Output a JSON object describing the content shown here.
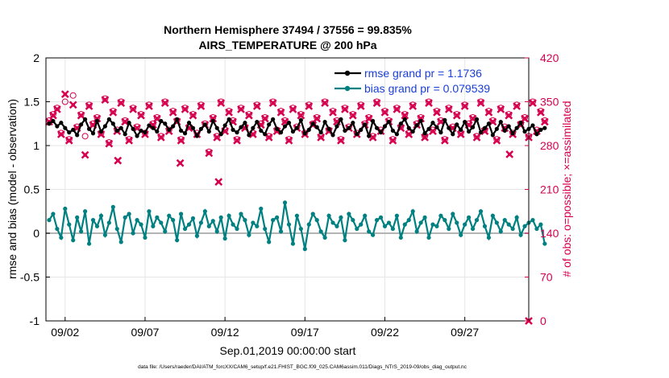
{
  "chart_data": {
    "type": "line",
    "title_line1": "Northern Hemisphere 37494 / 37556 = 99.835%",
    "title_line2": "AIRS_TEMPERATURE @ 200 hPa",
    "xlabel": "Sep.01,2019 00:00:00 start",
    "ylabel_left": "rmse and bias (model - observation)",
    "ylabel_right": "# of obs: o=possible; ×=assimilated",
    "footnote": "data file: /Users/raeder/DAI/ATM_forcXX/CAM6_setup/f.e21.FHIST_BGC.f09_025.CAM6assim.011/Diags_NTrS_2019-09/obs_diag_output.nc",
    "x_ticks": [
      {
        "day": 2,
        "label": "09/02"
      },
      {
        "day": 7,
        "label": "09/07"
      },
      {
        "day": 12,
        "label": "09/12"
      },
      {
        "day": 17,
        "label": "09/17"
      },
      {
        "day": 22,
        "label": "09/22"
      },
      {
        "day": 27,
        "label": "09/27"
      }
    ],
    "xlim": [
      0.8,
      31.0
    ],
    "ylim_left": [
      -1,
      2
    ],
    "yticks_left": [
      "-1",
      "-0.5",
      "0",
      "0.5",
      "1",
      "1.5",
      "2"
    ],
    "ylim_right": [
      0,
      420
    ],
    "yticks_right": [
      "0",
      "70",
      "140",
      "210",
      "280",
      "350",
      "420"
    ],
    "legend": [
      {
        "label": "rmse grand pr = 1.1736",
        "color": "#000000"
      },
      {
        "label": "bias grand pr = 0.079539",
        "color": "#008080"
      }
    ],
    "colors": {
      "rmse": "#000000",
      "bias": "#008080",
      "obs": "#d6004f",
      "zero_line": "#b4b4b4",
      "grid": "#e6e6e6"
    },
    "x_start": 1.0,
    "x_step": 0.25,
    "series": [
      {
        "name": "rmse",
        "axis": "left",
        "values": [
          1.25,
          1.28,
          1.22,
          1.26,
          1.2,
          1.15,
          1.18,
          1.12,
          1.24,
          1.3,
          1.19,
          1.14,
          1.28,
          1.16,
          1.22,
          1.3,
          1.25,
          1.17,
          1.2,
          1.13,
          1.26,
          1.19,
          1.11,
          1.17,
          1.15,
          1.23,
          1.2,
          1.16,
          1.28,
          1.25,
          1.18,
          1.22,
          1.3,
          1.17,
          1.14,
          1.26,
          1.2,
          1.11,
          1.19,
          1.24,
          1.16,
          1.28,
          1.2,
          1.13,
          1.23,
          1.3,
          1.18,
          1.15,
          1.21,
          1.26,
          1.12,
          1.2,
          1.27,
          1.17,
          1.13,
          1.24,
          1.3,
          1.19,
          1.15,
          1.22,
          1.26,
          1.16,
          1.2,
          1.29,
          1.14,
          1.18,
          1.25,
          1.21,
          1.15,
          1.27,
          1.19,
          1.12,
          1.22,
          1.3,
          1.17,
          1.2,
          1.26,
          1.13,
          1.18,
          1.24,
          1.11,
          1.28,
          1.2,
          1.15,
          1.22,
          1.27,
          1.17,
          1.13,
          1.25,
          1.3,
          1.2,
          1.16,
          1.23,
          1.28,
          1.14,
          1.19,
          1.26,
          1.21,
          1.15,
          1.29,
          1.2,
          1.13,
          1.24,
          1.18,
          1.27,
          1.16,
          1.21,
          1.3,
          1.15,
          1.2,
          1.25,
          1.12,
          1.19,
          1.27,
          1.17,
          1.22,
          1.14,
          1.2,
          1.26,
          1.16,
          1.19,
          1.23,
          1.13,
          1.18,
          1.2
        ]
      },
      {
        "name": "bias",
        "axis": "left",
        "values": [
          0.15,
          0.22,
          0.05,
          -0.05,
          0.28,
          0.1,
          -0.08,
          0.18,
          0.02,
          0.25,
          -0.12,
          0.15,
          0.08,
          0.2,
          -0.02,
          0.12,
          0.3,
          0.05,
          -0.1,
          0.18,
          0.22,
          0.0,
          0.15,
          0.1,
          -0.05,
          0.25,
          0.08,
          0.18,
          0.12,
          0.02,
          0.2,
          0.15,
          -0.08,
          0.22,
          0.05,
          0.1,
          0.17,
          -0.03,
          0.12,
          0.25,
          0.08,
          0.14,
          0.02,
          0.18,
          -0.06,
          0.2,
          0.1,
          0.05,
          0.22,
          0.15,
          -0.02,
          0.12,
          0.08,
          0.28,
          0.05,
          -0.1,
          0.15,
          0.18,
          0.02,
          0.35,
          0.1,
          -0.12,
          0.2,
          0.05,
          -0.18,
          0.1,
          0.22,
          0.15,
          0.02,
          -0.05,
          0.2,
          0.12,
          0.08,
          0.18,
          -0.08,
          0.22,
          0.15,
          0.05,
          0.1,
          0.2,
          0.02,
          -0.02,
          0.15,
          0.18,
          0.08,
          0.12,
          0.05,
          0.2,
          -0.05,
          0.1,
          0.15,
          0.25,
          0.02,
          0.12,
          0.18,
          -0.05,
          0.1,
          0.08,
          0.2,
          0.15,
          0.05,
          0.22,
          0.12,
          -0.02,
          0.1,
          0.18,
          0.05,
          0.15,
          0.25,
          0.08,
          -0.05,
          0.2,
          0.12,
          0.02,
          0.15,
          0.1,
          0.05,
          0.18,
          -0.02,
          0.08,
          0.12,
          0.15,
          0.05,
          0.1,
          -0.12
        ]
      },
      {
        "name": "obs_possible",
        "axis": "right",
        "values": [
          320,
          330,
          340,
          300,
          350,
          290,
          360,
          310,
          330,
          295,
          345,
          315,
          325,
          300,
          355,
          285,
          335,
          305,
          350,
          320,
          290,
          340,
          310,
          330,
          300,
          345,
          315,
          325,
          295,
          350,
          305,
          335,
          320,
          290,
          340,
          310,
          330,
          300,
          345,
          315,
          270,
          325,
          295,
          350,
          305,
          335,
          320,
          290,
          340,
          310,
          330,
          300,
          345,
          315,
          325,
          295,
          350,
          305,
          335,
          320,
          290,
          340,
          310,
          330,
          300,
          345,
          315,
          325,
          295,
          350,
          305,
          335,
          320,
          290,
          340,
          310,
          330,
          300,
          345,
          315,
          325,
          295,
          350,
          305,
          335,
          320,
          290,
          340,
          310,
          330,
          300,
          345,
          315,
          325,
          295,
          350,
          305,
          335,
          320,
          290,
          340,
          310,
          330,
          300,
          345,
          315,
          325,
          295,
          350,
          305,
          335,
          320,
          290,
          340,
          310,
          330,
          300,
          345,
          315,
          325,
          295,
          350,
          305,
          335,
          320
        ]
      },
      {
        "name": "obs_assimilated",
        "axis": "right",
        "values": [
          318,
          328,
          338,
          298,
          362,
          288,
          345,
          308,
          328,
          265,
          343,
          313,
          323,
          298,
          353,
          283,
          333,
          303,
          348,
          318,
          288,
          338,
          308,
          328,
          298,
          343,
          313,
          323,
          293,
          348,
          303,
          333,
          318,
          288,
          338,
          308,
          328,
          298,
          343,
          313,
          268,
          323,
          293,
          348,
          303,
          333,
          318,
          288,
          338,
          308,
          328,
          298,
          343,
          313,
          323,
          293,
          348,
          303,
          333,
          318,
          288,
          338,
          308,
          328,
          298,
          343,
          313,
          323,
          293,
          348,
          303,
          333,
          318,
          288,
          338,
          308,
          328,
          298,
          343,
          313,
          323,
          293,
          348,
          303,
          333,
          318,
          288,
          338,
          308,
          328,
          298,
          343,
          313,
          323,
          293,
          348,
          303,
          333,
          318,
          288,
          338,
          308,
          328,
          298,
          343,
          313,
          323,
          293,
          348,
          303,
          333,
          318,
          288,
          338,
          308,
          328,
          298,
          343,
          313,
          323,
          293,
          348,
          303,
          333,
          318
        ]
      }
    ],
    "extra_points": [
      {
        "series": "obs_assimilated",
        "x": 9.2,
        "y": 252
      },
      {
        "series": "obs_assimilated",
        "x": 11.6,
        "y": 222
      },
      {
        "series": "obs_assimilated",
        "x": 5.3,
        "y": 256
      },
      {
        "series": "obs_assimilated",
        "x": 29.8,
        "y": 266
      },
      {
        "series": "obs_assimilated",
        "x": 31.0,
        "y": 0
      }
    ]
  }
}
